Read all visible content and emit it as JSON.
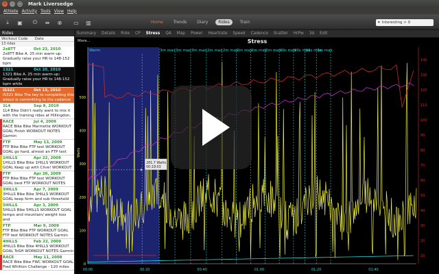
{
  "window": {
    "title": "Mark Liversedge"
  },
  "menu": [
    "Athlete",
    "Activity",
    "Tools",
    "View",
    "Help"
  ],
  "toolbar": {
    "view_tabs": [
      {
        "label": "Home",
        "state": "home"
      },
      {
        "label": "Trends",
        "state": ""
      },
      {
        "label": "Diary",
        "state": ""
      },
      {
        "label": "Rides",
        "state": "selected"
      },
      {
        "label": "Train",
        "state": ""
      }
    ],
    "filter": "Interesting > 0"
  },
  "sidebar": {
    "title": "Rides",
    "col_code": "Workout Code",
    "col_date": "Date",
    "count": "13 rides",
    "rides": [
      {
        "code": "2x8TT",
        "date": "Oct 23, 2010",
        "notes": "2x8TT Bike A. 25 min warm-up: Gradually raise your HR to 148-152 bpm",
        "style": "light",
        "strip": "#ffffff"
      },
      {
        "code": "1321",
        "date": "Oct 20, 2010",
        "notes": "1321 Bike A. 25 min warm-up: Gradually raise your HR to 148-152 bpm while",
        "style": "dark",
        "strip": "#0e0e0e"
      },
      {
        "code": "IS321",
        "date": "Oct 13, 2010",
        "notes": "IS321 Bike The key to completing this wkout is committing to the cadence",
        "style": "hl",
        "strip": "#e86a2a"
      },
      {
        "code": "1L4",
        "date": "Sep 9, 2010",
        "notes": "1L4 Bike Didn't really want to mix it with the training rides at Hillingdon,",
        "style": "light",
        "strip": "#ffffff"
      },
      {
        "code": "RACE",
        "date": "Jul 4, 2009",
        "notes": "RACE Bike Bike Marmotte WORKOUT GOAL Finish WORKOUT NOTES Garmin",
        "style": "light",
        "strip": "#d03030"
      },
      {
        "code": "FTP",
        "date": "May 13, 2009",
        "notes": "FTP Bike Bike FTP test WORKOUT GOAL go hard, almost an FTP test",
        "style": "light",
        "strip": "#d03030"
      },
      {
        "code": "1HILLS",
        "date": "Apr 22, 2009",
        "notes": "1HILLS Bike Bike 1HILLS WORKOUT GOAL Keep up with Clive! WORKOUT",
        "style": "light",
        "strip": "#e8c020"
      },
      {
        "code": "FTP",
        "date": "Apr 20, 2009",
        "notes": "FTP Bike Bike FTP test WORKOUT GOAL best FTP WORKOUT NOTES",
        "style": "light",
        "strip": "#d03030"
      },
      {
        "code": "3HILLS",
        "date": "Apr 7, 2009",
        "notes": "3HILLS Bike Bike 3HILLS WORKOUT GOAL keep form and sub threshold",
        "style": "light",
        "strip": "#e8c020"
      },
      {
        "code": "5HILLS",
        "date": "Apr 3, 2009",
        "notes": "5HILLS Bike 5HILLS WORKOUT GOAL tempo and mountain/ weight loss and",
        "style": "light",
        "strip": "#e8c020"
      },
      {
        "code": "FTP",
        "date": "Mar 9, 2009",
        "notes": "FTP Bike Bike FTP WORKOUT GOAL FTP test WORKOUT NOTES Garmin",
        "style": "light",
        "strip": "#e8c020"
      },
      {
        "code": "4HILLS",
        "date": "Feb 22, 2009",
        "notes": "4HILLS Bike Bike 4HILLS WORKOUT GOAL ToSH WORKOUT NOTES Garmin",
        "style": "light",
        "strip": "#e8c020"
      },
      {
        "code": "RACE",
        "date": "May 11, 2008",
        "notes": "RACE Bike Bike FWC WORKOUT GOAL Fred Whitton Challenge - 120 miles",
        "style": "light",
        "strip": "#d03030"
      }
    ]
  },
  "main_tabs": [
    "Summary",
    "Details",
    "Ride",
    "CP",
    "Stress",
    "QA",
    "Map",
    "Power",
    "Heartrate",
    "Speed",
    "Cadence",
    "Scatter",
    "HrPw",
    "3d",
    "Edit"
  ],
  "selected_tab": "Stress",
  "more_label": "More...",
  "chart_data": {
    "type": "line",
    "title": "Stress",
    "ylabel": "Watts",
    "xlim_minutes": [
      0,
      115
    ],
    "ylim": [
      0,
      650
    ],
    "y_ticks": [
      0,
      100,
      200,
      300,
      400,
      500
    ],
    "x_ticks": [
      "00:00",
      "00:20",
      "00:40",
      "01:00",
      "01:20",
      "01:40"
    ],
    "right_ticks": [
      "140",
      "130",
      "120",
      "110",
      "100",
      "90",
      "80",
      "70",
      "60",
      "50",
      "40",
      "30",
      "20",
      "10"
    ],
    "interval_labels": [
      "Warm",
      "3m max",
      "3m max",
      "3m max",
      "2m max",
      "2m max",
      "2m max",
      "2m max",
      "2m max",
      "90s max",
      "90s max",
      "90s max",
      "3m max"
    ],
    "cursor_label": "281.7 Watts",
    "cursor_time": "00:19:03",
    "series": [
      {
        "name": "Power",
        "color": "#f0f03c"
      },
      {
        "name": "Stress",
        "color": "#d02828"
      },
      {
        "name": "Fitness",
        "color": "#c030c0"
      },
      {
        "name": "Recovery",
        "color": "#2ad8d8"
      }
    ]
  }
}
